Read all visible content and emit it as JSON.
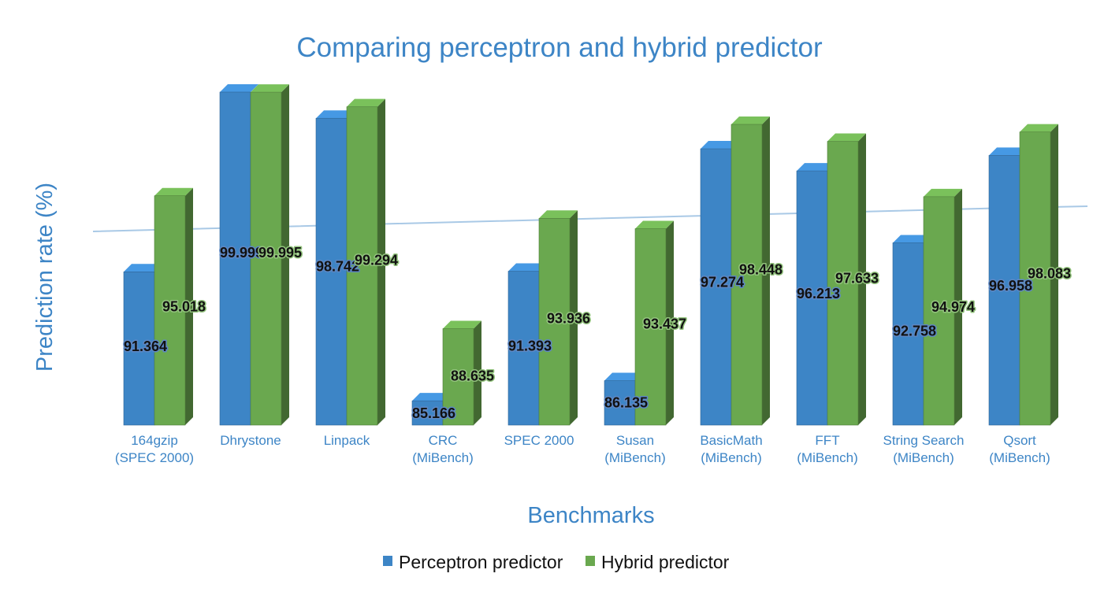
{
  "chart_data": {
    "type": "bar",
    "title": "Comparing perceptron and hybrid predictor",
    "xlabel": "Benchmarks",
    "ylabel": "Prediction rate (%)",
    "ylim": [
      84,
      100.5
    ],
    "grid": false,
    "legend_position": "bottom",
    "categories": [
      [
        "164gzip",
        "(SPEC 2000)"
      ],
      [
        "Dhrystone"
      ],
      [
        "Linpack"
      ],
      [
        "CRC",
        "(MiBench)"
      ],
      [
        "SPEC 2000"
      ],
      [
        "Susan",
        "(MiBench)"
      ],
      [
        "BasicMath",
        "(MiBench)"
      ],
      [
        "FFT",
        "(MiBench)"
      ],
      [
        "String Search",
        "(MiBench)"
      ],
      [
        "Qsort",
        "(MiBench)"
      ]
    ],
    "series": [
      {
        "name": "Perceptron predictor",
        "color": "#3d85c6",
        "values": [
          91.364,
          99.999,
          98.742,
          85.166,
          91.393,
          86.135,
          97.274,
          96.213,
          92.758,
          96.958
        ],
        "labels": [
          "91.364",
          "99.999",
          "98.742",
          "85.166",
          "91.393",
          "86.135",
          "97.274",
          "96.213",
          "92.758",
          "96.958"
        ]
      },
      {
        "name": "Hybrid predictor",
        "color": "#6aa84f",
        "values": [
          95.018,
          99.995,
          99.294,
          88.635,
          93.936,
          93.437,
          98.448,
          97.633,
          94.974,
          98.083
        ],
        "labels": [
          "95.018",
          "99.995",
          "99.294",
          "88.635",
          "93.936",
          "93.437",
          "98.448",
          "97.633",
          "94.974",
          "98.083"
        ]
      }
    ],
    "trendline_color": "#a9c9e6"
  }
}
